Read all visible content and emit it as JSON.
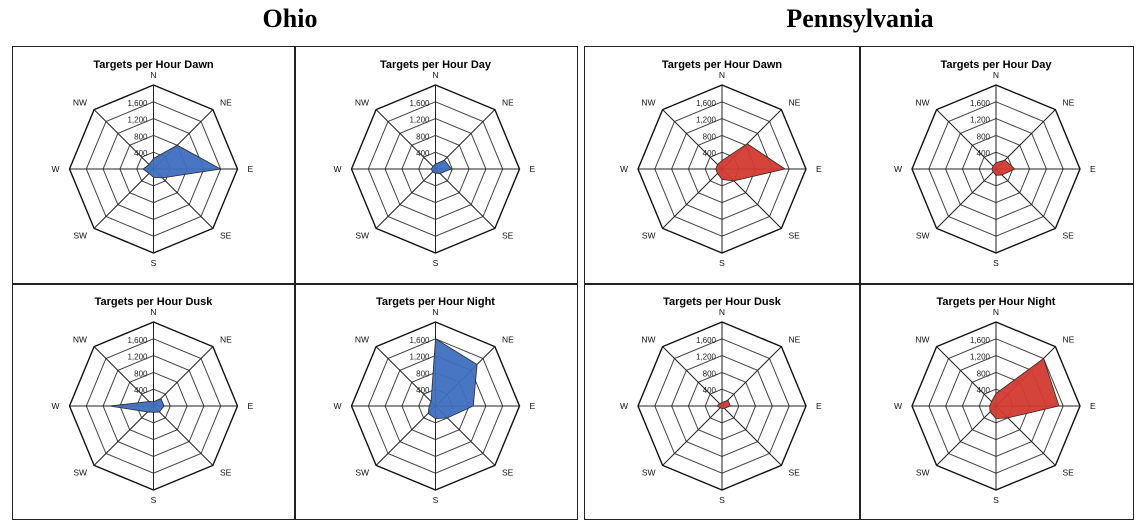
{
  "states": [
    {
      "id": "ohio",
      "title": "Ohio"
    },
    {
      "id": "pa",
      "title": "Pennsylvania"
    }
  ],
  "chart_data": [
    {
      "type": "radar",
      "state": "Ohio",
      "title": "Targets per Hour Dawn",
      "directions": [
        "N",
        "NE",
        "E",
        "SE",
        "S",
        "SW",
        "W",
        "NW"
      ],
      "ticks": [
        "400",
        "800",
        "1,200",
        "1,600"
      ],
      "rmax": 1600,
      "values": [
        250,
        800,
        1600,
        300,
        200,
        150,
        250,
        150
      ],
      "color": "#3e6fbf"
    },
    {
      "type": "radar",
      "state": "Ohio",
      "title": "Targets per Hour Day",
      "directions": [
        "N",
        "NE",
        "E",
        "SE",
        "S",
        "SW",
        "W",
        "NW"
      ],
      "ticks": [
        "400",
        "800",
        "1,200",
        "1,600"
      ],
      "rmax": 1600,
      "values": [
        120,
        300,
        380,
        150,
        100,
        100,
        100,
        90
      ],
      "color": "#3e6fbf"
    },
    {
      "type": "radar",
      "state": "Ohio",
      "title": "Targets per Hour Dusk",
      "directions": [
        "N",
        "NE",
        "E",
        "SE",
        "S",
        "SW",
        "W",
        "NW"
      ],
      "ticks": [
        "400",
        "800",
        "1,200",
        "1,600"
      ],
      "rmax": 1600,
      "values": [
        100,
        250,
        250,
        200,
        150,
        200,
        1050,
        150
      ],
      "color": "#3e6fbf"
    },
    {
      "type": "radar",
      "state": "Ohio",
      "title": "Targets per Hour Night",
      "directions": [
        "N",
        "NE",
        "E",
        "SE",
        "S",
        "SW",
        "W",
        "NW"
      ],
      "ticks": [
        "400",
        "800",
        "1,200",
        "1,600"
      ],
      "rmax": 1600,
      "values": [
        1600,
        1400,
        900,
        400,
        300,
        250,
        150,
        150
      ],
      "color": "#3e6fbf"
    },
    {
      "type": "radar",
      "state": "Pennsylvania",
      "title": "Targets per Hour Dawn",
      "directions": [
        "N",
        "NE",
        "E",
        "SE",
        "S",
        "SW",
        "W",
        "NW"
      ],
      "ticks": [
        "400",
        "800",
        "1,200",
        "1,600"
      ],
      "rmax": 1600,
      "values": [
        200,
        850,
        1500,
        400,
        250,
        150,
        150,
        150
      ],
      "color": "#d23a2f"
    },
    {
      "type": "radar",
      "state": "Pennsylvania",
      "title": "Targets per Hour Day",
      "directions": [
        "N",
        "NE",
        "E",
        "SE",
        "S",
        "SW",
        "W",
        "NW"
      ],
      "ticks": [
        "400",
        "800",
        "1,200",
        "1,600"
      ],
      "rmax": 1600,
      "values": [
        150,
        300,
        450,
        200,
        150,
        100,
        100,
        100
      ],
      "color": "#d23a2f"
    },
    {
      "type": "radar",
      "state": "Pennsylvania",
      "title": "Targets per Hour Dusk",
      "directions": [
        "N",
        "NE",
        "E",
        "SE",
        "S",
        "SW",
        "W",
        "NW"
      ],
      "ticks": [
        "400",
        "800",
        "1,200",
        "1,600"
      ],
      "rmax": 1600,
      "values": [
        80,
        200,
        200,
        80,
        60,
        60,
        120,
        80
      ],
      "color": "#d23a2f"
    },
    {
      "type": "radar",
      "state": "Pennsylvania",
      "title": "Targets per Hour Night",
      "directions": [
        "N",
        "NE",
        "E",
        "SE",
        "S",
        "SW",
        "W",
        "NW"
      ],
      "ticks": [
        "400",
        "800",
        "1,200",
        "1,600"
      ],
      "rmax": 1600,
      "values": [
        300,
        1600,
        1500,
        400,
        300,
        200,
        150,
        150
      ],
      "color": "#d23a2f"
    }
  ]
}
